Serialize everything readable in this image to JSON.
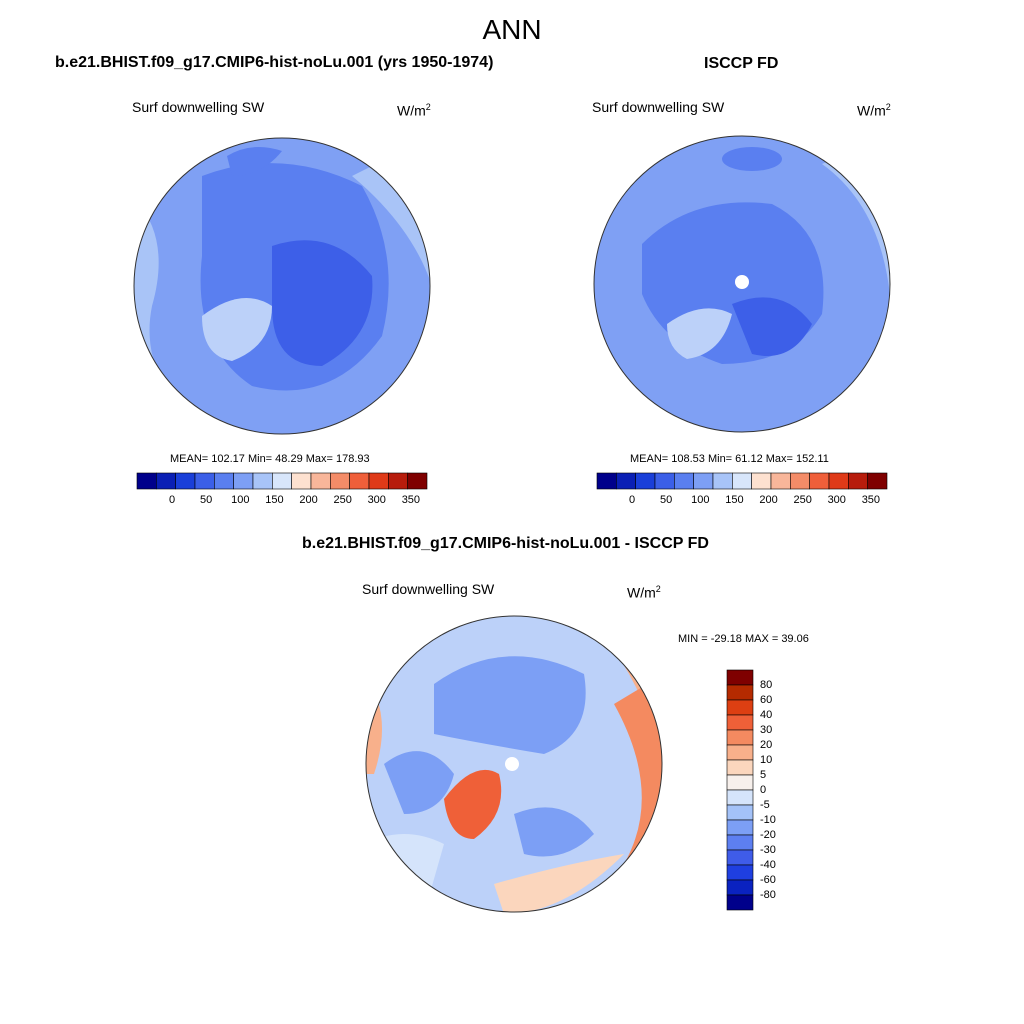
{
  "figure": {
    "title": "ANN"
  },
  "panels": [
    {
      "title": "b.e21.BHIST.f09_g17.CMIP6-hist-noLu.001 (yrs 1950-1974)",
      "left_label": "Surf downwelling SW",
      "units_base": "W/m",
      "units_exp": "2",
      "stats": "MEAN= 102.17  Min=  48.29  Max= 178.93"
    },
    {
      "title": "ISCCP FD",
      "left_label": "Surf downwelling SW",
      "units_base": "W/m",
      "units_exp": "2",
      "stats": "MEAN= 108.53  Min=  61.12  Max= 152.11"
    },
    {
      "title": "b.e21.BHIST.f09_g17.CMIP6-hist-noLu.001 - ISCCP FD",
      "left_label": "Surf downwelling SW",
      "units_base": "W/m",
      "units_exp": "2",
      "stats": "MIN = -29.18 MAX =  39.06"
    }
  ],
  "colorbar_abs": {
    "colors": [
      "#00008b",
      "#0a1fb5",
      "#1a3fd9",
      "#3b5fe8",
      "#5a7ff0",
      "#7d9ff5",
      "#a8c4f8",
      "#d8e6fb",
      "#fde1d0",
      "#f8b69a",
      "#f48c68",
      "#ef5f3a",
      "#df3a18",
      "#b71c0c",
      "#7f0000"
    ],
    "labels": [
      "0",
      "50",
      "100",
      "150",
      "200",
      "250",
      "300",
      "350"
    ]
  },
  "colorbar_diff": {
    "colors": [
      "#00008b",
      "#0a22c0",
      "#1f3fe0",
      "#3f5ce9",
      "#5d7ff1",
      "#7c9ff5",
      "#a4c2f8",
      "#d5e4fb",
      "#f7f0ec",
      "#fbd6bd",
      "#f8b08b",
      "#f48a60",
      "#ef6038",
      "#dd3f12",
      "#b52a00",
      "#7f0000"
    ],
    "labels": [
      "80",
      "60",
      "40",
      "30",
      "20",
      "10",
      "5",
      "0",
      "-5",
      "-10",
      "-20",
      "-30",
      "-40",
      "-60",
      "-80"
    ]
  }
}
